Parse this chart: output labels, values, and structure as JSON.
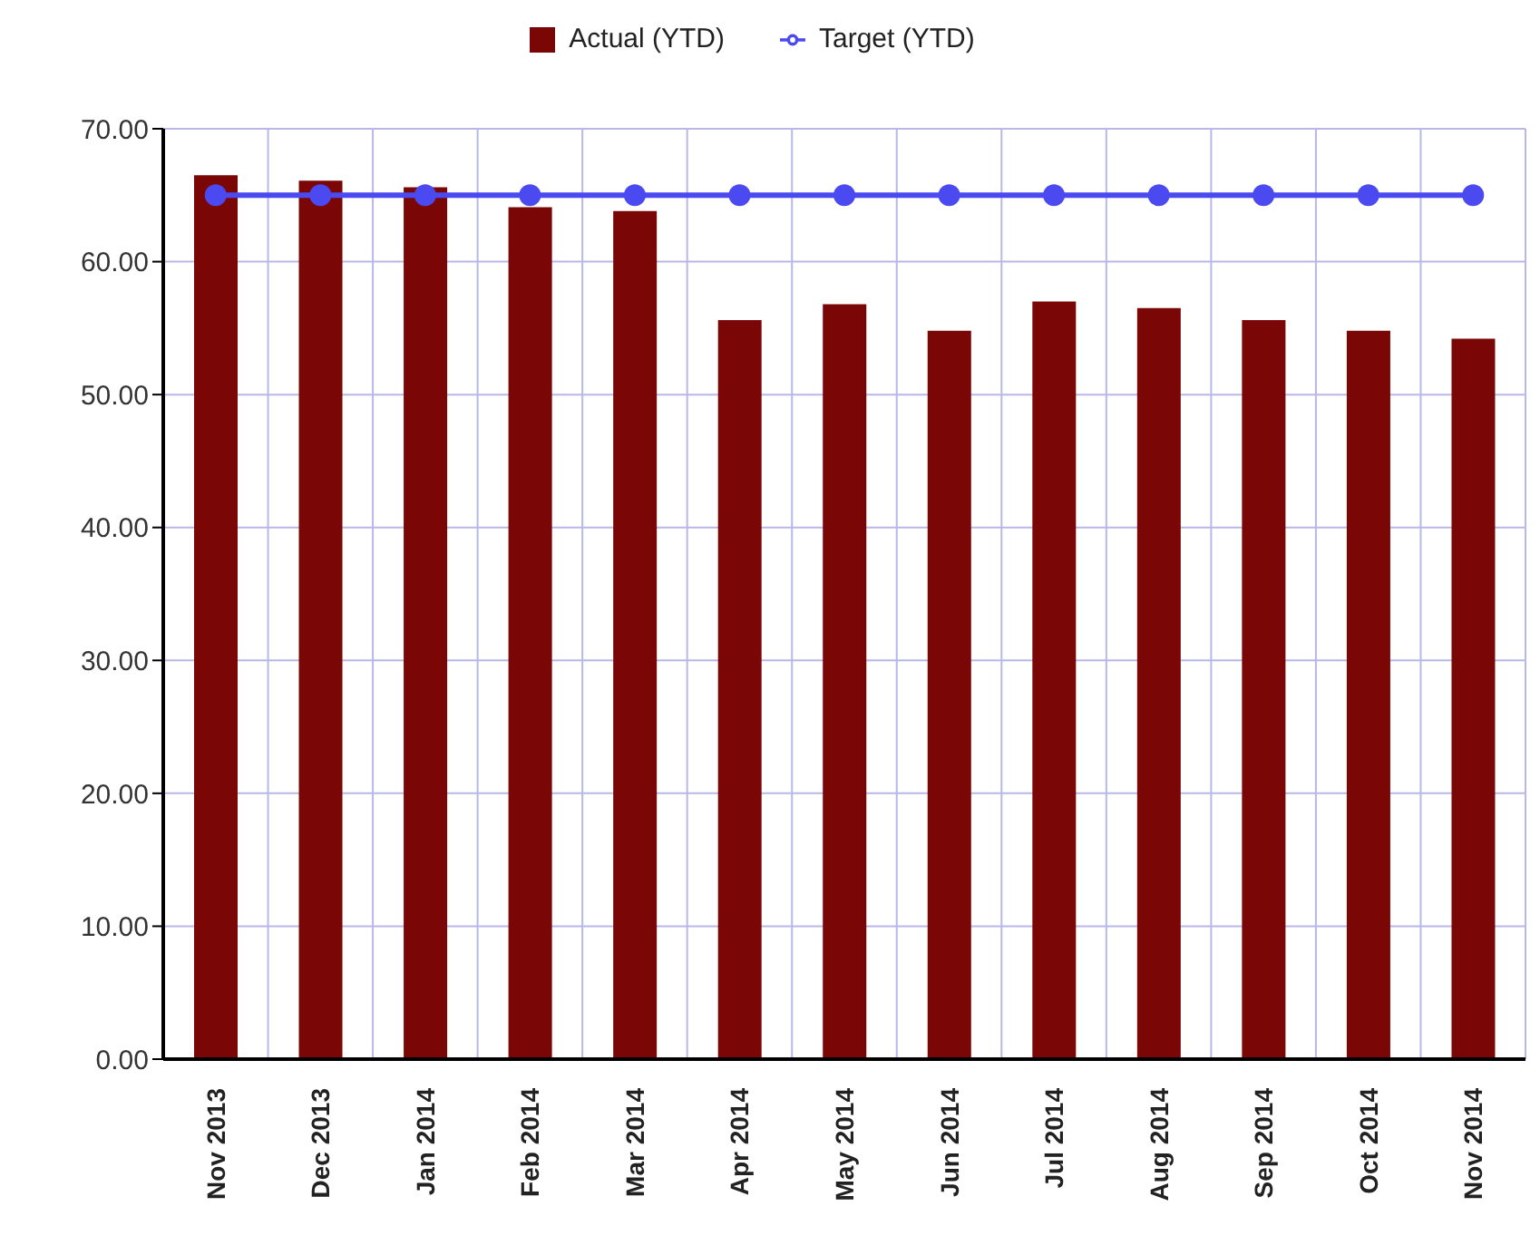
{
  "chart_data": {
    "type": "bar",
    "categories": [
      "Nov 2013",
      "Dec 2013",
      "Jan 2014",
      "Feb 2014",
      "Mar 2014",
      "Apr 2014",
      "May 2014",
      "Jun 2014",
      "Jul 2014",
      "Aug 2014",
      "Sep 2014",
      "Oct 2014",
      "Nov 2014"
    ],
    "series": [
      {
        "name": "Target (YTD)",
        "type": "line",
        "color": "#4a4af0",
        "values": [
          65,
          65,
          65,
          65,
          65,
          65,
          65,
          65,
          65,
          65,
          65,
          65,
          65
        ]
      },
      {
        "name": "Actual (YTD)",
        "color": "#7a0606",
        "values": [
          66.5,
          66.1,
          65.6,
          64.1,
          63.8,
          55.6,
          56.8,
          54.8,
          57.0,
          56.5,
          55.6,
          54.8,
          54.2
        ]
      }
    ],
    "ylim": [
      0,
      70
    ],
    "yticks": [
      {
        "value": 0,
        "label": "0.00"
      },
      {
        "value": 10,
        "label": "10.00"
      },
      {
        "value": 20,
        "label": "20.00"
      },
      {
        "value": 30,
        "label": "30.00"
      },
      {
        "value": 40,
        "label": "40.00"
      },
      {
        "value": 50,
        "label": "50.00"
      },
      {
        "value": 60,
        "label": "60.00"
      },
      {
        "value": 70,
        "label": "70.00"
      }
    ],
    "grid": true,
    "legend": "top",
    "marker": "circle"
  }
}
